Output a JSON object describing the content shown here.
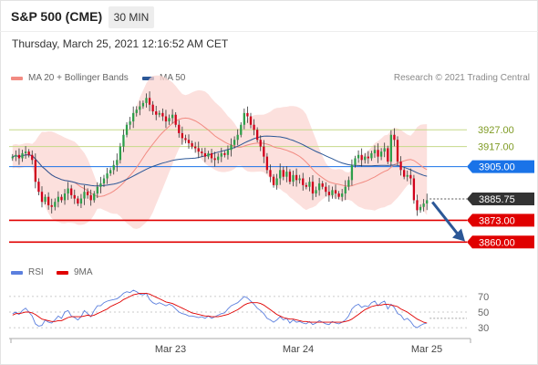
{
  "header": {
    "title": "S&P 500 (CME)",
    "interval": "30 MIN",
    "datetime": "Thursday, March 25, 2021 12:16:52 AM CET"
  },
  "legend": {
    "ma20_label": "MA 20 + Bollinger Bands",
    "ma50_label": "MA 50",
    "credit": "Research © 2021 Trading Central",
    "rsi_label": "RSI",
    "rsi_ma_label": "9MA"
  },
  "colors": {
    "ma20": "#f28b82",
    "ma50": "#2b5797",
    "resistance": "#c5d98a",
    "pivot": "#1a73e8",
    "support": "#e00000",
    "last": "#333333",
    "candle_up": "#2e9e4a",
    "candle_down": "#d0021b",
    "rsi": "#5b7fde",
    "rsi_ma": "#e00000"
  },
  "chart_data": [
    {
      "type": "candlestick",
      "title": "",
      "ylim": [
        3852,
        3950
      ],
      "price_levels": [
        {
          "label": "3927.00",
          "value": 3927.0,
          "kind": "resistance"
        },
        {
          "label": "3917.00",
          "value": 3917.0,
          "kind": "resistance"
        },
        {
          "label": "3905.00",
          "value": 3905.0,
          "kind": "pivot"
        },
        {
          "label": "3885.75",
          "value": 3885.75,
          "kind": "last"
        },
        {
          "label": "3873.00",
          "value": 3873.0,
          "kind": "support"
        },
        {
          "label": "3860.00",
          "value": 3860.0,
          "kind": "support"
        }
      ],
      "x_ticks": [
        "Mar 23",
        "Mar 24",
        "Mar 25"
      ],
      "close": [
        3911,
        3912,
        3910,
        3913,
        3914,
        3912,
        3909,
        3896,
        3890,
        3884,
        3887,
        3882,
        3881,
        3884,
        3887,
        3885,
        3889,
        3892,
        3888,
        3886,
        3883,
        3886,
        3890,
        3888,
        3885,
        3889,
        3893,
        3895,
        3898,
        3901,
        3903,
        3906,
        3909,
        3917,
        3924,
        3930,
        3932,
        3937,
        3939,
        3941,
        3943,
        3946,
        3942,
        3938,
        3936,
        3937,
        3935,
        3932,
        3934,
        3936,
        3930,
        3925,
        3922,
        3921,
        3919,
        3917,
        3916,
        3914,
        3913,
        3911,
        3913,
        3910,
        3909,
        3911,
        3913,
        3912,
        3915,
        3918,
        3921,
        3924,
        3930,
        3937,
        3935,
        3930,
        3927,
        3921,
        3917,
        3911,
        3903,
        3899,
        3894,
        3898,
        3903,
        3899,
        3902,
        3896,
        3900,
        3897,
        3898,
        3894,
        3893,
        3896,
        3889,
        3891,
        3895,
        3893,
        3890,
        3888,
        3891,
        3889,
        3887,
        3889,
        3893,
        3897,
        3906,
        3910,
        3912,
        3909,
        3911,
        3910,
        3913,
        3915,
        3911,
        3914,
        3916,
        3908,
        3924,
        3921,
        3908,
        3903,
        3899,
        3900,
        3898,
        3885,
        3879,
        3881,
        3883,
        3885
      ]
    },
    {
      "type": "line",
      "ylim": [
        22,
        85
      ],
      "y_ticks": [
        70,
        50,
        30
      ],
      "x_ticks": [
        "Mar 23",
        "Mar 24",
        "Mar 25"
      ],
      "series": [
        {
          "name": "RSI",
          "values": [
            48,
            50,
            47,
            52,
            55,
            50,
            45,
            35,
            32,
            33,
            40,
            37,
            36,
            40,
            45,
            42,
            50,
            52,
            45,
            43,
            40,
            44,
            52,
            48,
            44,
            52,
            58,
            58,
            62,
            64,
            65,
            66,
            67,
            70,
            74,
            76,
            75,
            78,
            76,
            73,
            72,
            74,
            66,
            62,
            60,
            62,
            60,
            58,
            60,
            58,
            54,
            50,
            48,
            47,
            45,
            45,
            44,
            43,
            44,
            42,
            45,
            42,
            44,
            46,
            48,
            49,
            54,
            58,
            60,
            62,
            66,
            70,
            68,
            64,
            60,
            55,
            52,
            48,
            42,
            40,
            37,
            40,
            44,
            40,
            42,
            36,
            40,
            37,
            38,
            36,
            35,
            38,
            34,
            36,
            39,
            37,
            35,
            34,
            38,
            36,
            35,
            37,
            40,
            45,
            54,
            58,
            60,
            56,
            58,
            57,
            62,
            64,
            58,
            62,
            64,
            54,
            60,
            56,
            48,
            46,
            40,
            42,
            38,
            32,
            30,
            33,
            35,
            36
          ]
        },
        {
          "name": "9MA",
          "values": [
            46,
            48,
            48,
            49,
            50,
            50,
            49,
            47,
            44,
            41,
            40,
            39,
            38,
            38,
            39,
            39,
            41,
            43,
            44,
            44,
            44,
            44,
            45,
            46,
            45,
            46,
            48,
            50,
            52,
            54,
            57,
            59,
            61,
            63,
            66,
            68,
            70,
            72,
            73,
            74,
            74,
            74,
            73,
            71,
            69,
            67,
            65,
            63,
            62,
            61,
            59,
            57,
            55,
            53,
            51,
            49,
            48,
            47,
            46,
            45,
            45,
            44,
            44,
            44,
            45,
            46,
            47,
            49,
            51,
            53,
            56,
            59,
            61,
            62,
            62,
            62,
            61,
            59,
            56,
            53,
            50,
            47,
            45,
            43,
            42,
            41,
            41,
            40,
            39,
            38,
            38,
            37,
            37,
            37,
            37,
            37,
            37,
            37,
            37,
            37,
            37,
            37,
            38,
            39,
            41,
            44,
            47,
            50,
            53,
            55,
            57,
            58,
            59,
            59,
            60,
            60,
            59,
            58,
            57,
            54,
            52,
            50,
            47,
            44,
            41,
            39,
            37,
            36
          ]
        }
      ]
    }
  ]
}
